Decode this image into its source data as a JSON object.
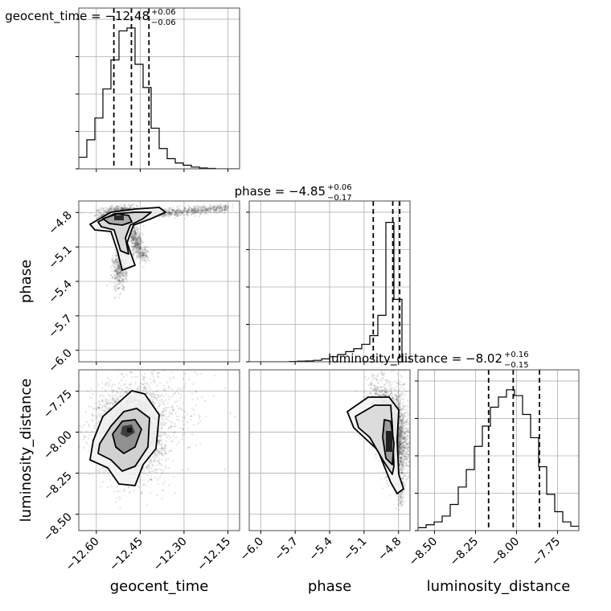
{
  "chart_data": {
    "type": "corner",
    "parameters": [
      "geocent_time",
      "phase",
      "luminosity_distance"
    ],
    "axis_labels": [
      "geocent_time",
      "phase",
      "luminosity_distance"
    ],
    "ranges": {
      "geocent_time": [
        -12.66,
        -12.11
      ],
      "phase": [
        -6.1,
        -4.7
      ],
      "luminosity_distance": [
        -8.6,
        -7.62
      ]
    },
    "ticks": {
      "geocent_time": [
        "−12.60",
        "−12.45",
        "−12.30",
        "−12.15"
      ],
      "geocent_time_values": [
        -12.6,
        -12.45,
        -12.3,
        -12.15
      ],
      "phase": [
        "−6.0",
        "−5.7",
        "−5.4",
        "−5.1",
        "−4.8"
      ],
      "phase_values": [
        -6.0,
        -5.7,
        -5.4,
        -5.1,
        -4.8
      ],
      "luminosity_distance": [
        "−8.50",
        "−8.25",
        "−8.00",
        "−7.75"
      ],
      "luminosity_distance_values": [
        -8.5,
        -8.25,
        -8.0,
        -7.75
      ]
    },
    "titles": {
      "geocent_time": {
        "name": "geocent_time",
        "median": "−12.48",
        "plus": "+0.06",
        "minus": "−0.06"
      },
      "phase": {
        "name": "phase",
        "median": "−4.85",
        "plus": "+0.06",
        "minus": "−0.17"
      },
      "luminosity_distance": {
        "name": "luminosity_distance",
        "median": "−8.02",
        "plus": "+0.16",
        "minus": "−0.15"
      }
    },
    "quantiles": {
      "geocent_time": [
        -12.54,
        -12.48,
        -12.42
      ],
      "phase": [
        -5.02,
        -4.85,
        -4.79
      ],
      "luminosity_distance": [
        -8.17,
        -8.02,
        -7.86
      ]
    },
    "histograms": {
      "geocent_time": {
        "edges": [
          -12.66,
          -12.6325,
          -12.605,
          -12.5775,
          -12.55,
          -12.5225,
          -12.495,
          -12.4675,
          -12.44,
          -12.4125,
          -12.385,
          -12.3575,
          -12.33,
          -12.3025,
          -12.275,
          -12.2475,
          -12.22,
          -12.1925,
          -12.165,
          -12.1375,
          -12.11
        ],
        "counts": [
          0.08,
          0.2,
          0.35,
          0.55,
          0.75,
          0.95,
          0.97,
          0.72,
          0.56,
          0.28,
          0.14,
          0.07,
          0.04,
          0.025,
          0.012,
          0.006,
          0.003,
          0,
          0,
          0
        ]
      },
      "phase": {
        "edges": [
          -6.1,
          -6.03,
          -5.96,
          -5.89,
          -5.82,
          -5.75,
          -5.68,
          -5.61,
          -5.54,
          -5.47,
          -5.4,
          -5.33,
          -5.26,
          -5.19,
          -5.12,
          -5.05,
          -4.98,
          -4.91,
          -4.84,
          -4.77,
          -4.7
        ],
        "counts": [
          0,
          0,
          0,
          0,
          0,
          0.002,
          0.004,
          0.006,
          0.01,
          0.02,
          0.035,
          0.05,
          0.07,
          0.09,
          0.12,
          0.18,
          0.32,
          0.96,
          0.43,
          0,
          0
        ]
      },
      "luminosity_distance": {
        "edges": [
          -8.6,
          -8.551,
          -8.502,
          -8.453,
          -8.404,
          -8.355,
          -8.306,
          -8.257,
          -8.208,
          -8.159,
          -8.11,
          -8.061,
          -8.012,
          -7.963,
          -7.914,
          -7.865,
          -7.816,
          -7.767,
          -7.718,
          -7.669,
          -7.62
        ],
        "counts": [
          0.02,
          0.04,
          0.06,
          0.1,
          0.18,
          0.3,
          0.42,
          0.58,
          0.72,
          0.85,
          0.92,
          0.97,
          0.93,
          0.8,
          0.64,
          0.44,
          0.25,
          0.13,
          0.06,
          0.03
        ]
      }
    },
    "density_cores": {
      "phase_vs_geocent_time": {
        "x": -12.51,
        "y": -4.82
      },
      "luminosity_distance_vs_geocent_time": {
        "x": -12.47,
        "y": -7.98
      },
      "luminosity_distance_vs_phase": {
        "x": -4.8,
        "y": -8.0
      }
    }
  }
}
